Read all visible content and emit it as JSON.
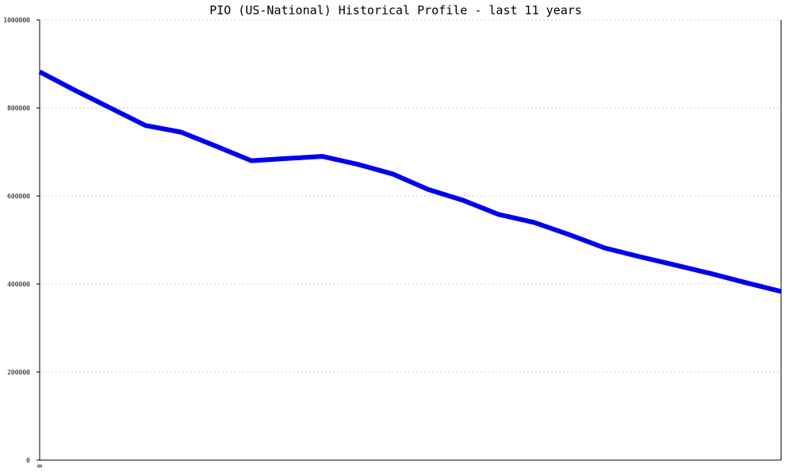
{
  "chart_data": {
    "type": "line",
    "title": "PIO (US-National) Historical Profile - last 11 years",
    "xlabel": "",
    "ylabel": "",
    "x_tick_labels": [
      "0"
    ],
    "ylim": [
      0,
      1000000
    ],
    "y_ticks": [
      0,
      200000,
      400000,
      600000,
      800000,
      1000000
    ],
    "y_tick_labels": [
      "0",
      "200000",
      "400000",
      "600000",
      "800000",
      "1000000"
    ],
    "grid": true,
    "series_color": "#0000ee",
    "series": [
      {
        "values": [
          882000,
          840000,
          800000,
          760000,
          745000,
          713000,
          680000,
          685000,
          690000,
          672000,
          650000,
          615000,
          590000,
          558000,
          540000,
          512000,
          482000,
          462000,
          443000,
          424000,
          403000,
          383000
        ]
      }
    ]
  }
}
